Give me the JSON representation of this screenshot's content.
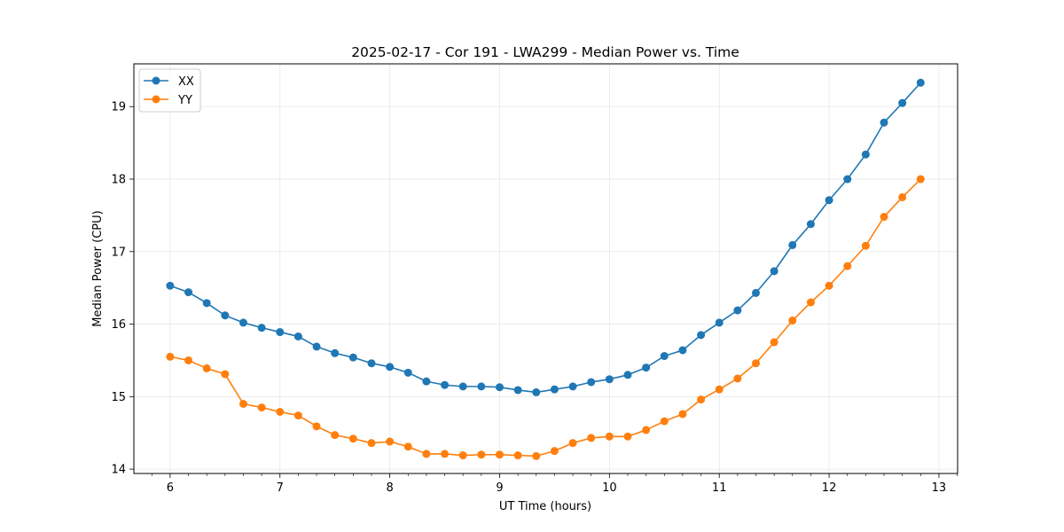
{
  "chart_data": {
    "type": "line",
    "title": "2025-02-17 - Cor 191 - LWA299 - Median Power vs. Time",
    "xlabel": "UT Time (hours)",
    "ylabel": "Median Power (CPU)",
    "xlim": [
      5.67,
      13.17
    ],
    "ylim": [
      13.94,
      19.59
    ],
    "xticks": [
      6,
      7,
      8,
      9,
      10,
      11,
      12,
      13
    ],
    "yticks": [
      14,
      15,
      16,
      17,
      18,
      19
    ],
    "xtick_labels": [
      "6",
      "7",
      "8",
      "9",
      "10",
      "11",
      "12",
      "13"
    ],
    "ytick_labels": [
      "14",
      "15",
      "16",
      "17",
      "18",
      "19"
    ],
    "grid": true,
    "legend_position": "top-left",
    "x": [
      6.0,
      6.1667,
      6.3333,
      6.5,
      6.6667,
      6.8333,
      7.0,
      7.1667,
      7.3333,
      7.5,
      7.6667,
      7.8333,
      8.0,
      8.1667,
      8.3333,
      8.5,
      8.6667,
      8.8333,
      9.0,
      9.1667,
      9.3333,
      9.5,
      9.6667,
      9.8333,
      10.0,
      10.1667,
      10.3333,
      10.5,
      10.6667,
      10.8333,
      11.0,
      11.1667,
      11.3333,
      11.5,
      11.6667,
      11.8333,
      12.0,
      12.1667,
      12.3333,
      12.5,
      12.6667,
      12.8333
    ],
    "series": [
      {
        "name": "XX",
        "color": "#1f77b4",
        "values": [
          16.53,
          16.44,
          16.29,
          16.12,
          16.02,
          15.95,
          15.89,
          15.83,
          15.69,
          15.6,
          15.54,
          15.46,
          15.41,
          15.33,
          15.21,
          15.16,
          15.14,
          15.14,
          15.13,
          15.09,
          15.06,
          15.1,
          15.14,
          15.2,
          15.24,
          15.3,
          15.4,
          15.56,
          15.64,
          15.85,
          16.02,
          16.19,
          16.43,
          16.73,
          17.09,
          17.38,
          17.71,
          18.0,
          18.34,
          18.78,
          19.05,
          19.33
        ]
      },
      {
        "name": "YY",
        "color": "#ff7f0e",
        "values": [
          15.55,
          15.5,
          15.39,
          15.31,
          14.9,
          14.85,
          14.79,
          14.74,
          14.59,
          14.47,
          14.42,
          14.36,
          14.38,
          14.31,
          14.21,
          14.21,
          14.19,
          14.2,
          14.2,
          14.19,
          14.18,
          14.25,
          14.36,
          14.43,
          14.45,
          14.45,
          14.54,
          14.66,
          14.76,
          14.96,
          15.1,
          15.25,
          15.46,
          15.75,
          16.05,
          16.3,
          16.53,
          16.8,
          17.08,
          17.48,
          17.75,
          18.0
        ]
      }
    ]
  }
}
